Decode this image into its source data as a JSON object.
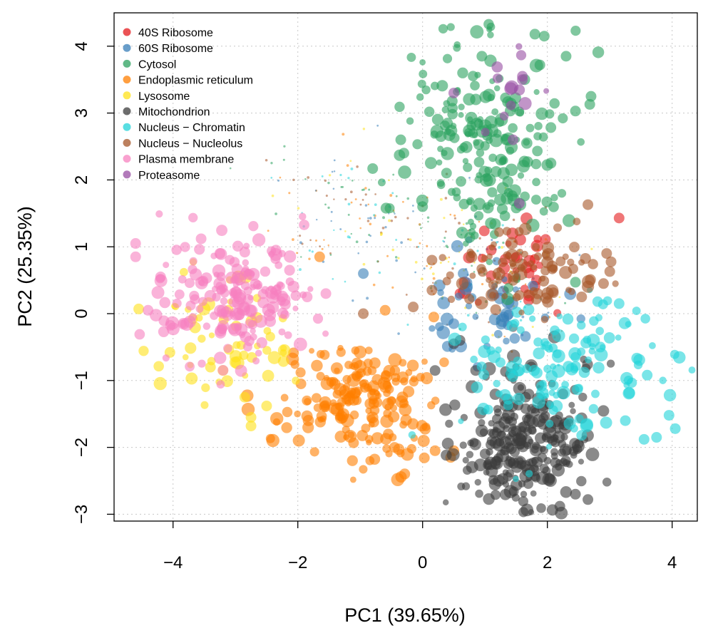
{
  "chart_data": {
    "type": "scatter",
    "title": "",
    "xlabel": "PC1 (39.65%)",
    "ylabel": "PC2 (25.35%)",
    "xlim": [
      -5,
      4.3
    ],
    "ylim": [
      -3.3,
      4.5
    ],
    "xticks": [
      -4,
      -2,
      0,
      2,
      4
    ],
    "yticks": [
      -3,
      -2,
      -1,
      0,
      1,
      2,
      3,
      4
    ],
    "xtick_labels": [
      "−4",
      "−2",
      "0",
      "2",
      "4"
    ],
    "ytick_labels": [
      "−3",
      "−2",
      "−1",
      "0",
      "1",
      "2",
      "3",
      "4"
    ],
    "grid": true,
    "legend_position": "top-left",
    "unlabeled_color": "#9e9e9e",
    "series": [
      {
        "name": "40S Ribosome",
        "color": "#e41a1c",
        "centroid": [
          1.45,
          0.75
        ],
        "spread": [
          0.45,
          0.35
        ],
        "n": 35,
        "points": [
          [
            3.15,
            1.43
          ],
          [
            1.1,
            0.95
          ],
          [
            0.6,
            0.3
          ],
          [
            1.7,
            0.2
          ]
        ]
      },
      {
        "name": "60S Ribosome",
        "color": "#377eb8",
        "centroid": [
          0.95,
          0.05
        ],
        "spread": [
          0.5,
          0.35
        ],
        "n": 45,
        "points": [
          [
            -0.95,
            0.6
          ],
          [
            0.65,
            0.6
          ],
          [
            1.3,
            -0.05
          ],
          [
            0.5,
            -0.15
          ]
        ]
      },
      {
        "name": "Cytosol",
        "color": "#2ca25f",
        "centroid": [
          0.95,
          2.55
        ],
        "spread": [
          0.6,
          0.85
        ],
        "n": 210,
        "points": [
          [
            1.8,
            4.18
          ],
          [
            1.95,
            4.15
          ],
          [
            1.88,
            3.72
          ],
          [
            0.95,
            3.85
          ],
          [
            2.3,
            3.85
          ],
          [
            2.7,
            3.25
          ],
          [
            2.68,
            3.13
          ],
          [
            2.45,
            3.03
          ],
          [
            -0.35,
            2.6
          ],
          [
            -0.8,
            2.17
          ],
          [
            0.4,
            2.85
          ],
          [
            1.5,
            1.58
          ],
          [
            -0.3,
            2.4
          ],
          [
            0.0,
            1.6
          ],
          [
            2.45,
            0.47
          ]
        ]
      },
      {
        "name": "Endoplasmic reticulum",
        "color": "#ff7f00",
        "centroid": [
          -1.0,
          -1.3
        ],
        "spread": [
          0.65,
          0.45
        ],
        "n": 190,
        "points": [
          [
            -1.65,
            0.85
          ],
          [
            -0.6,
            0.05
          ],
          [
            0.18,
            -0.05
          ],
          [
            0.2,
            -2.05
          ],
          [
            0.5,
            -2.05
          ],
          [
            0.45,
            -2.15
          ],
          [
            -0.45,
            -2.0
          ],
          [
            -0.55,
            -1.8
          ],
          [
            -1.95,
            -1.05
          ]
        ]
      },
      {
        "name": "Lysosome",
        "color": "#ffe119",
        "centroid": [
          -3.1,
          -0.3
        ],
        "spread": [
          0.65,
          0.5
        ],
        "n": 55,
        "points": [
          [
            -4.55,
            0.07
          ],
          [
            -2.75,
            -1.55
          ],
          [
            -2.75,
            -1.68
          ],
          [
            -2.5,
            -1.38
          ],
          [
            -2.85,
            -1.25
          ],
          [
            -3.4,
            -0.8
          ],
          [
            -4.05,
            -0.58
          ],
          [
            -3.2,
            -0.85
          ]
        ]
      },
      {
        "name": "Mitochondrion",
        "color": "#3c3c3c",
        "centroid": [
          1.65,
          -1.95
        ],
        "spread": [
          0.55,
          0.5
        ],
        "n": 260,
        "points": [
          [
            2.65,
            -2.78
          ],
          [
            2.45,
            -2.7
          ],
          [
            2.2,
            -2.88
          ],
          [
            0.2,
            -0.85
          ],
          [
            0.85,
            -0.85
          ],
          [
            2.25,
            -1.2
          ],
          [
            1.65,
            -1.25
          ],
          [
            0.6,
            -0.4
          ],
          [
            0.5,
            -0.45
          ]
        ]
      },
      {
        "name": "Nucleus − Chromatin",
        "color": "#22d3d8",
        "centroid": [
          2.2,
          -0.8
        ],
        "spread": [
          0.8,
          0.55
        ],
        "n": 130,
        "points": [
          [
            3.95,
            -1.52
          ],
          [
            4.05,
            -1.72
          ],
          [
            3.75,
            -1.85
          ],
          [
            3.55,
            -1.88
          ],
          [
            3.6,
            -0.92
          ],
          [
            3.25,
            -1.6
          ],
          [
            2.85,
            -0.5
          ],
          [
            3.15,
            0.15
          ],
          [
            2.55,
            -1.82
          ]
        ]
      },
      {
        "name": "Nucleus − Nucleolus",
        "color": "#a65628",
        "centroid": [
          1.6,
          0.65
        ],
        "spread": [
          0.6,
          0.3
        ],
        "n": 90,
        "points": [
          [
            2.65,
            1.63
          ],
          [
            2.95,
            0.9
          ],
          [
            3.0,
            0.63
          ],
          [
            2.9,
            0.45
          ],
          [
            0.15,
            0.8
          ],
          [
            -0.95,
            0.0
          ],
          [
            -0.15,
            0.1
          ],
          [
            0.15,
            0.35
          ],
          [
            2.55,
            0.25
          ]
        ]
      },
      {
        "name": "Plasma membrane",
        "color": "#f781bf",
        "centroid": [
          -3.0,
          0.2
        ],
        "spread": [
          0.6,
          0.45
        ],
        "n": 185,
        "points": [
          [
            -4.6,
            1.05
          ],
          [
            -4.6,
            0.85
          ],
          [
            -3.55,
            1.12
          ],
          [
            -2.85,
            0.92
          ],
          [
            -2.35,
            0.95
          ],
          [
            -1.55,
            0.3
          ],
          [
            -1.85,
            0.25
          ],
          [
            -4.2,
            0.55
          ],
          [
            -4.4,
            0.05
          ]
        ]
      },
      {
        "name": "Proteasome",
        "color": "#984ea3",
        "centroid": [
          1.4,
          3.3
        ],
        "spread": [
          0.3,
          0.35
        ],
        "n": 12,
        "points": [
          [
            0.5,
            3.3
          ],
          [
            1.45,
            2.6
          ],
          [
            1.55,
            1.65
          ],
          [
            1.6,
            3.5
          ],
          [
            1.6,
            3.55
          ]
        ]
      }
    ]
  }
}
